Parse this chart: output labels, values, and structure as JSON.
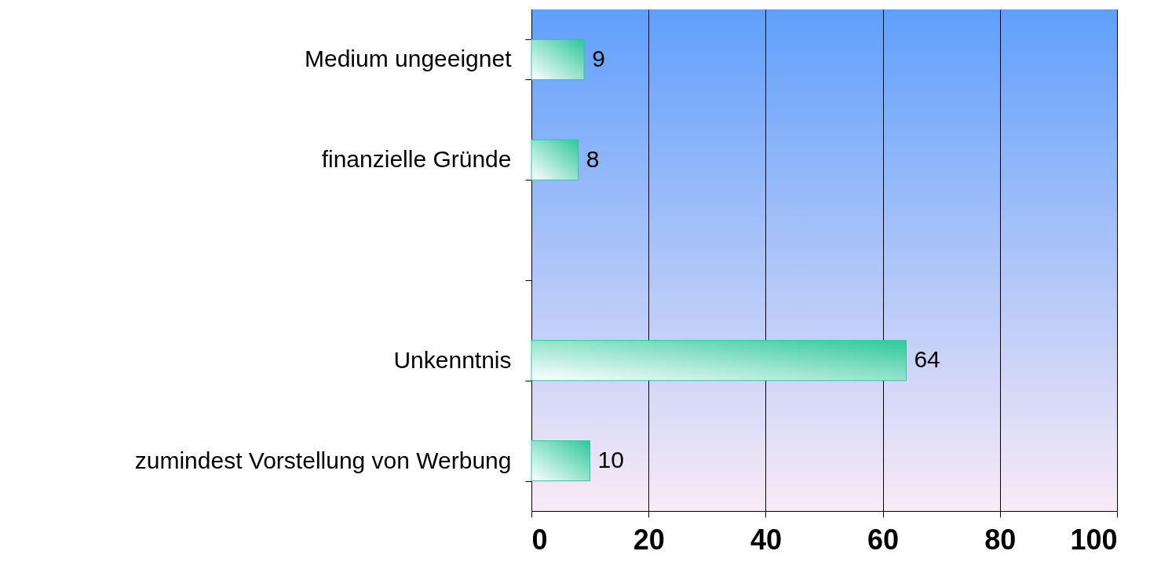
{
  "chart_data": {
    "type": "bar",
    "orientation": "horizontal",
    "categories": [
      "Medium ungeeignet",
      "finanzielle Gründe",
      null,
      "Unkenntnis",
      "zumindest Vorstellung von Werbung"
    ],
    "values": [
      9,
      8,
      null,
      64,
      10
    ],
    "color": "#2ec89a",
    "xlim": [
      0,
      100
    ],
    "xticks": [
      0,
      20,
      40,
      60,
      80,
      100
    ],
    "grid": "x",
    "data_labels": true
  }
}
